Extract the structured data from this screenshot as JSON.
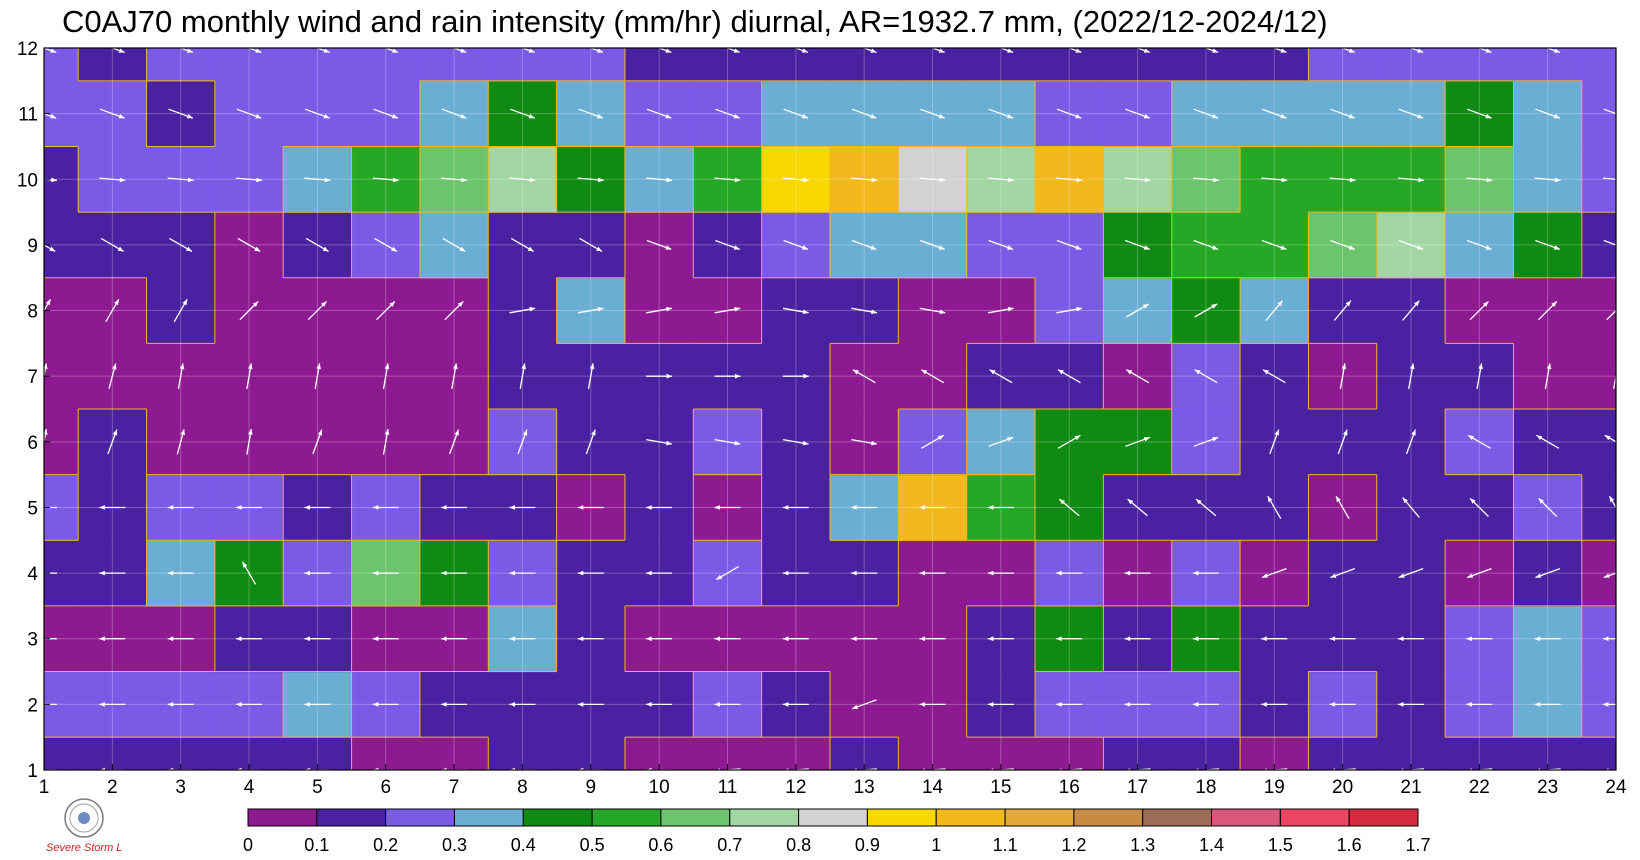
{
  "chart_data": {
    "type": "heatmap",
    "title": "C0AJ70 monthly wind and rain intensity (mm/hr) diurnal, AR=1932.7 mm, (2022/12-2024/12)",
    "x_ticks": [
      "1",
      "2",
      "3",
      "4",
      "5",
      "6",
      "7",
      "8",
      "9",
      "10",
      "11",
      "12",
      "13",
      "14",
      "15",
      "16",
      "17",
      "18",
      "19",
      "20",
      "21",
      "22",
      "23",
      "24"
    ],
    "y_ticks": [
      "1",
      "2",
      "3",
      "4",
      "5",
      "6",
      "7",
      "8",
      "9",
      "10",
      "11",
      "12"
    ],
    "xlim": [
      1,
      24
    ],
    "ylim": [
      1,
      12
    ],
    "colorbar": {
      "labels": [
        "0",
        "0.1",
        "0.2",
        "0.3",
        "0.4",
        "0.5",
        "0.6",
        "0.7",
        "0.8",
        "0.9",
        "1",
        "1.1",
        "1.2",
        "1.3",
        "1.4",
        "1.5",
        "1.6",
        "1.7"
      ],
      "colors": [
        "#8e1a91",
        "#4a21a0",
        "#7b5be6",
        "#6aaed4",
        "#0f8a12",
        "#26a826",
        "#6cc46c",
        "#a2d6a2",
        "#d2d2d2",
        "#f7d800",
        "#f2b81e",
        "#e4a83a",
        "#c78b44",
        "#9e6c58",
        "#d9587a",
        "#ef4565",
        "#d42a3e"
      ]
    },
    "grid": true,
    "rain_intensity": [
      [
        0.15,
        0.15,
        0.15,
        0.15,
        0.15,
        0.05,
        0.05,
        0.15,
        0.15,
        0.05,
        0.05,
        0.05,
        0.15,
        0.05,
        0.05,
        0.05,
        0.15,
        0.15,
        0.05,
        0.15,
        0.15,
        0.15,
        0.15,
        0.15
      ],
      [
        0.25,
        0.25,
        0.25,
        0.25,
        0.35,
        0.25,
        0.15,
        0.15,
        0.15,
        0.15,
        0.25,
        0.15,
        0.05,
        0.05,
        0.15,
        0.25,
        0.25,
        0.25,
        0.15,
        0.25,
        0.15,
        0.25,
        0.35,
        0.25
      ],
      [
        0.05,
        0.05,
        0.05,
        0.15,
        0.15,
        0.05,
        0.05,
        0.35,
        0.15,
        0.05,
        0.05,
        0.05,
        0.05,
        0.05,
        0.15,
        0.45,
        0.15,
        0.45,
        0.15,
        0.15,
        0.15,
        0.25,
        0.35,
        0.25
      ],
      [
        0.15,
        0.15,
        0.35,
        0.45,
        0.25,
        0.65,
        0.45,
        0.25,
        0.15,
        0.15,
        0.25,
        0.15,
        0.15,
        0.05,
        0.05,
        0.25,
        0.05,
        0.25,
        0.05,
        0.15,
        0.15,
        0.05,
        0.15,
        0.05
      ],
      [
        0.25,
        0.15,
        0.25,
        0.25,
        0.15,
        0.25,
        0.15,
        0.15,
        0.05,
        0.15,
        0.05,
        0.15,
        0.35,
        1.05,
        0.55,
        0.45,
        0.15,
        0.15,
        0.15,
        0.05,
        0.15,
        0.15,
        0.25,
        0.15
      ],
      [
        0.05,
        0.15,
        0.05,
        0.05,
        0.05,
        0.05,
        0.05,
        0.25,
        0.15,
        0.15,
        0.25,
        0.15,
        0.05,
        0.25,
        0.35,
        0.45,
        0.45,
        0.25,
        0.15,
        0.15,
        0.15,
        0.25,
        0.15,
        0.15
      ],
      [
        0.05,
        0.05,
        0.05,
        0.05,
        0.05,
        0.05,
        0.05,
        0.15,
        0.15,
        0.15,
        0.15,
        0.15,
        0.05,
        0.05,
        0.15,
        0.15,
        0.05,
        0.25,
        0.15,
        0.05,
        0.15,
        0.15,
        0.05,
        0.05
      ],
      [
        0.05,
        0.05,
        0.15,
        0.05,
        0.05,
        0.05,
        0.05,
        0.15,
        0.35,
        0.05,
        0.05,
        0.15,
        0.15,
        0.05,
        0.05,
        0.25,
        0.35,
        0.45,
        0.35,
        0.15,
        0.15,
        0.05,
        0.05,
        0.05
      ],
      [
        0.15,
        0.15,
        0.15,
        0.05,
        0.15,
        0.25,
        0.35,
        0.15,
        0.15,
        0.05,
        0.15,
        0.25,
        0.35,
        0.35,
        0.25,
        0.25,
        0.45,
        0.55,
        0.55,
        0.65,
        0.75,
        0.35,
        0.45,
        0.15
      ],
      [
        0.15,
        0.25,
        0.25,
        0.25,
        0.35,
        0.55,
        0.65,
        0.75,
        0.45,
        0.35,
        0.55,
        0.95,
        1.05,
        0.85,
        0.75,
        1.05,
        0.75,
        0.65,
        0.55,
        0.55,
        0.55,
        0.65,
        0.35,
        0.25
      ],
      [
        0.25,
        0.25,
        0.15,
        0.25,
        0.25,
        0.25,
        0.35,
        0.45,
        0.35,
        0.25,
        0.25,
        0.35,
        0.35,
        0.35,
        0.35,
        0.25,
        0.25,
        0.35,
        0.35,
        0.35,
        0.35,
        0.45,
        0.35,
        0.25
      ],
      [
        0.25,
        0.15,
        0.25,
        0.25,
        0.25,
        0.25,
        0.25,
        0.25,
        0.25,
        0.15,
        0.15,
        0.15,
        0.15,
        0.15,
        0.15,
        0.15,
        0.15,
        0.15,
        0.15,
        0.25,
        0.25,
        0.25,
        0.25,
        0.25
      ]
    ],
    "wind_direction_deg": [
      [
        270,
        270,
        270,
        270,
        270,
        270,
        270,
        270,
        270,
        270,
        265,
        265,
        265,
        265,
        265,
        265,
        265,
        265,
        265,
        265,
        265,
        265,
        265,
        265
      ],
      [
        270,
        270,
        270,
        270,
        270,
        270,
        270,
        270,
        270,
        270,
        270,
        270,
        250,
        270,
        270,
        270,
        270,
        270,
        270,
        270,
        270,
        270,
        270,
        270
      ],
      [
        270,
        270,
        270,
        270,
        270,
        270,
        270,
        270,
        270,
        270,
        270,
        270,
        270,
        270,
        270,
        270,
        270,
        270,
        270,
        270,
        270,
        270,
        270,
        270
      ],
      [
        270,
        270,
        270,
        330,
        270,
        270,
        270,
        270,
        270,
        270,
        240,
        270,
        270,
        270,
        270,
        270,
        270,
        270,
        250,
        250,
        250,
        250,
        250,
        250
      ],
      [
        270,
        270,
        270,
        270,
        270,
        270,
        270,
        270,
        270,
        270,
        270,
        270,
        270,
        270,
        270,
        310,
        310,
        310,
        330,
        330,
        320,
        315,
        315,
        330
      ],
      [
        10,
        20,
        15,
        10,
        20,
        10,
        20,
        20,
        20,
        100,
        100,
        100,
        100,
        60,
        70,
        60,
        70,
        70,
        20,
        20,
        20,
        300,
        300,
        300
      ],
      [
        10,
        15,
        10,
        10,
        10,
        10,
        10,
        10,
        10,
        90,
        90,
        90,
        300,
        300,
        300,
        300,
        300,
        300,
        300,
        10,
        10,
        10,
        10,
        10
      ],
      [
        30,
        30,
        30,
        45,
        45,
        45,
        45,
        80,
        80,
        80,
        80,
        100,
        100,
        100,
        80,
        80,
        60,
        60,
        40,
        40,
        40,
        45,
        45,
        45
      ],
      [
        120,
        120,
        120,
        120,
        120,
        120,
        120,
        120,
        120,
        110,
        110,
        110,
        110,
        110,
        110,
        110,
        110,
        110,
        110,
        110,
        110,
        110,
        110,
        110
      ],
      [
        95,
        95,
        95,
        95,
        95,
        95,
        95,
        95,
        95,
        95,
        95,
        95,
        95,
        95,
        95,
        95,
        95,
        95,
        95,
        95,
        95,
        95,
        95,
        95
      ],
      [
        110,
        110,
        110,
        110,
        110,
        110,
        110,
        110,
        110,
        110,
        110,
        110,
        110,
        110,
        110,
        110,
        110,
        110,
        110,
        110,
        110,
        110,
        110,
        110
      ],
      [
        110,
        110,
        110,
        110,
        110,
        110,
        110,
        110,
        110,
        110,
        110,
        110,
        110,
        110,
        110,
        110,
        110,
        110,
        110,
        110,
        110,
        110,
        110,
        110
      ]
    ]
  },
  "logo": {
    "text": "Severe Storm Lab."
  }
}
